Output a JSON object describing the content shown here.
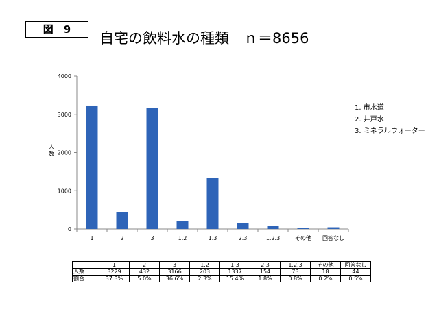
{
  "figure_label": "図　9",
  "title": "自宅の飲料水の種類　ｎ＝8656",
  "chart_data": {
    "type": "bar",
    "categories": [
      "1",
      "2",
      "3",
      "1.2",
      "1.3",
      "2.3",
      "1.2.3",
      "その他",
      "回答なし"
    ],
    "values": [
      3229,
      432,
      3166,
      203,
      1337,
      154,
      73,
      18,
      44
    ],
    "ylabel": "人数",
    "ylim": [
      0,
      4000
    ],
    "yticks": [
      "0",
      "1000",
      "2000",
      "3000",
      "4000"
    ],
    "bar_color": "#2e64b8",
    "grid": false
  },
  "legend": [
    "1. 市水道",
    "2. 井戸水",
    "3. ミネラルウォーター"
  ],
  "table": {
    "header": [
      "",
      "1",
      "2",
      "3",
      "1.2",
      "1.3",
      "2.3",
      "1.2.3",
      "その他",
      "回答なし"
    ],
    "rows": [
      [
        "人数",
        "3229",
        "432",
        "3166",
        "203",
        "1337",
        "154",
        "73",
        "18",
        "44"
      ],
      [
        "割合",
        "37.3%",
        "5.0%",
        "36.6%",
        "2.3%",
        "15.4%",
        "1.8%",
        "0.8%",
        "0.2%",
        "0.5%"
      ]
    ]
  }
}
